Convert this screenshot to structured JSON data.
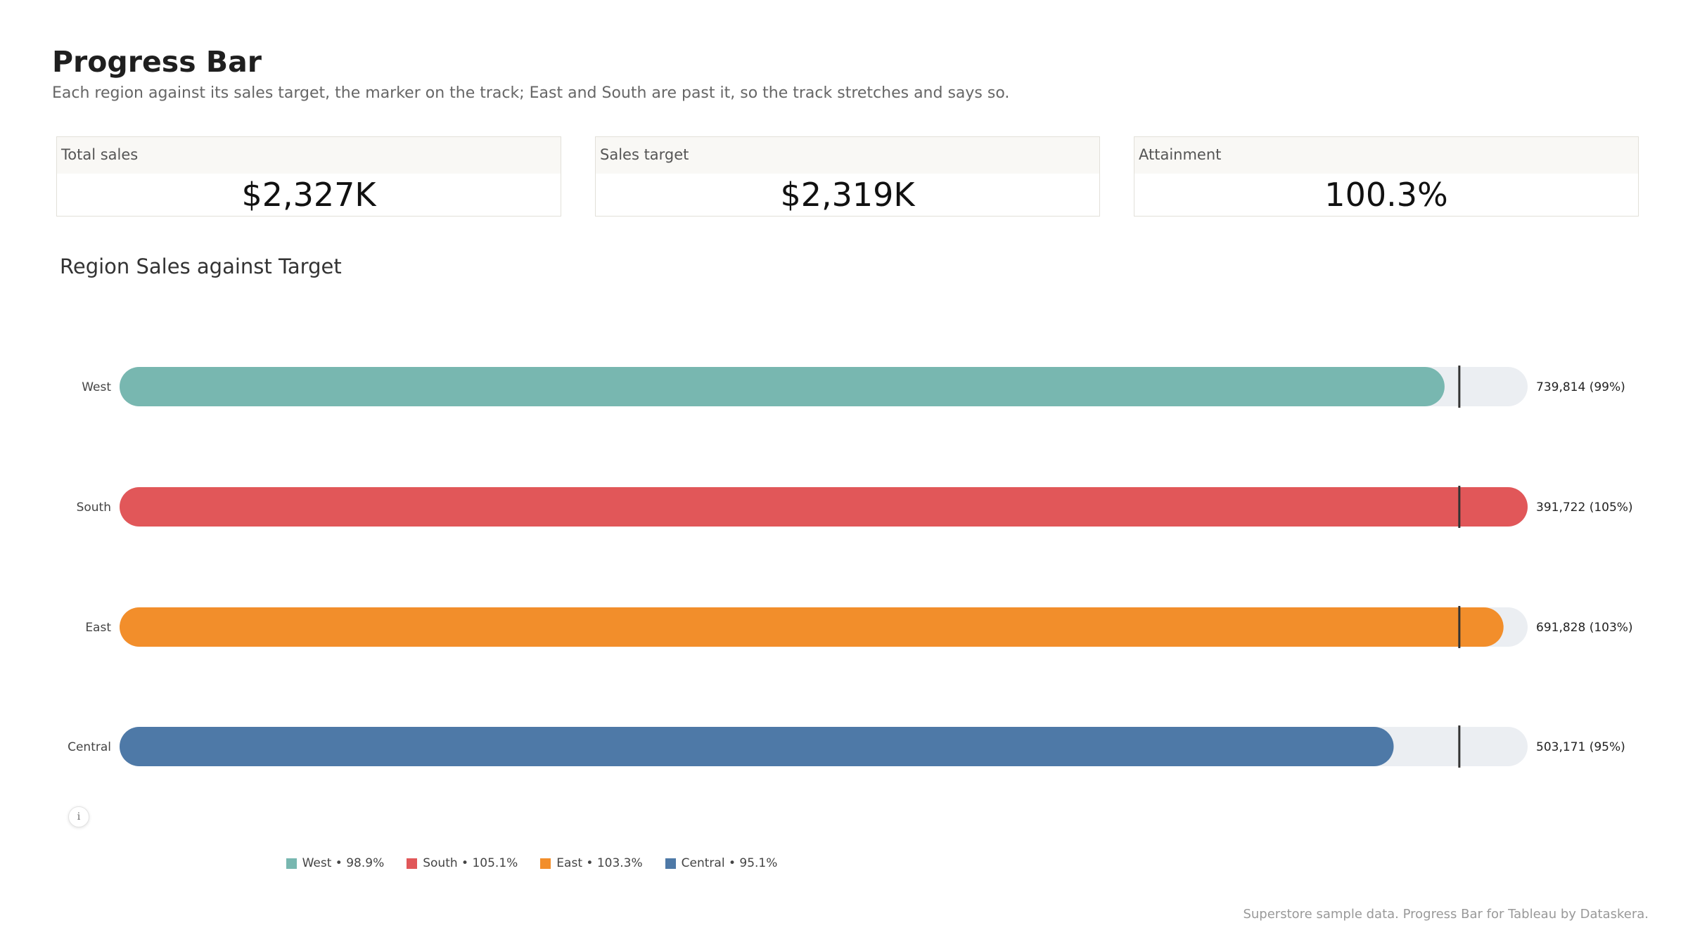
{
  "header": {
    "title": "Progress Bar",
    "subtitle": "Each region against its sales target, the marker on the track; East and South are past it, so the track stretches and says so."
  },
  "kpis": [
    {
      "label": "Total sales",
      "value": "$2,327K"
    },
    {
      "label": "Sales target",
      "value": "$2,319K"
    },
    {
      "label": "Attainment",
      "value": "100.3%"
    }
  ],
  "chart_data": {
    "type": "bar",
    "orientation": "horizontal",
    "title": "Region Sales against Target",
    "categories": [
      "West",
      "South",
      "East",
      "Central"
    ],
    "values": [
      739814,
      391722,
      691828,
      503171
    ],
    "attainment_pct": [
      98.9,
      105.1,
      103.3,
      95.1
    ],
    "value_labels": [
      "739,814 (99%)",
      "391,722 (105%)",
      "691,828 (103%)",
      "503,171 (95%)"
    ],
    "target_marker_pct": 100,
    "track_max_pct": 105.1,
    "colors": [
      "#78b7b0",
      "#e15759",
      "#f28e2b",
      "#4e79a7"
    ],
    "track_color": "#ebeef2",
    "marker_color": "#333333",
    "legend": [
      {
        "label": "West • 98.9%",
        "color": "#78b7b0"
      },
      {
        "label": "South • 105.1%",
        "color": "#e15759"
      },
      {
        "label": "East • 103.3%",
        "color": "#f28e2b"
      },
      {
        "label": "Central • 95.1%",
        "color": "#4e79a7"
      }
    ],
    "legend_position": "bottom",
    "grid": false
  },
  "info_icon": "info-icon",
  "footer": {
    "note": "Superstore sample data. Progress Bar for Tableau by Dataskera."
  }
}
